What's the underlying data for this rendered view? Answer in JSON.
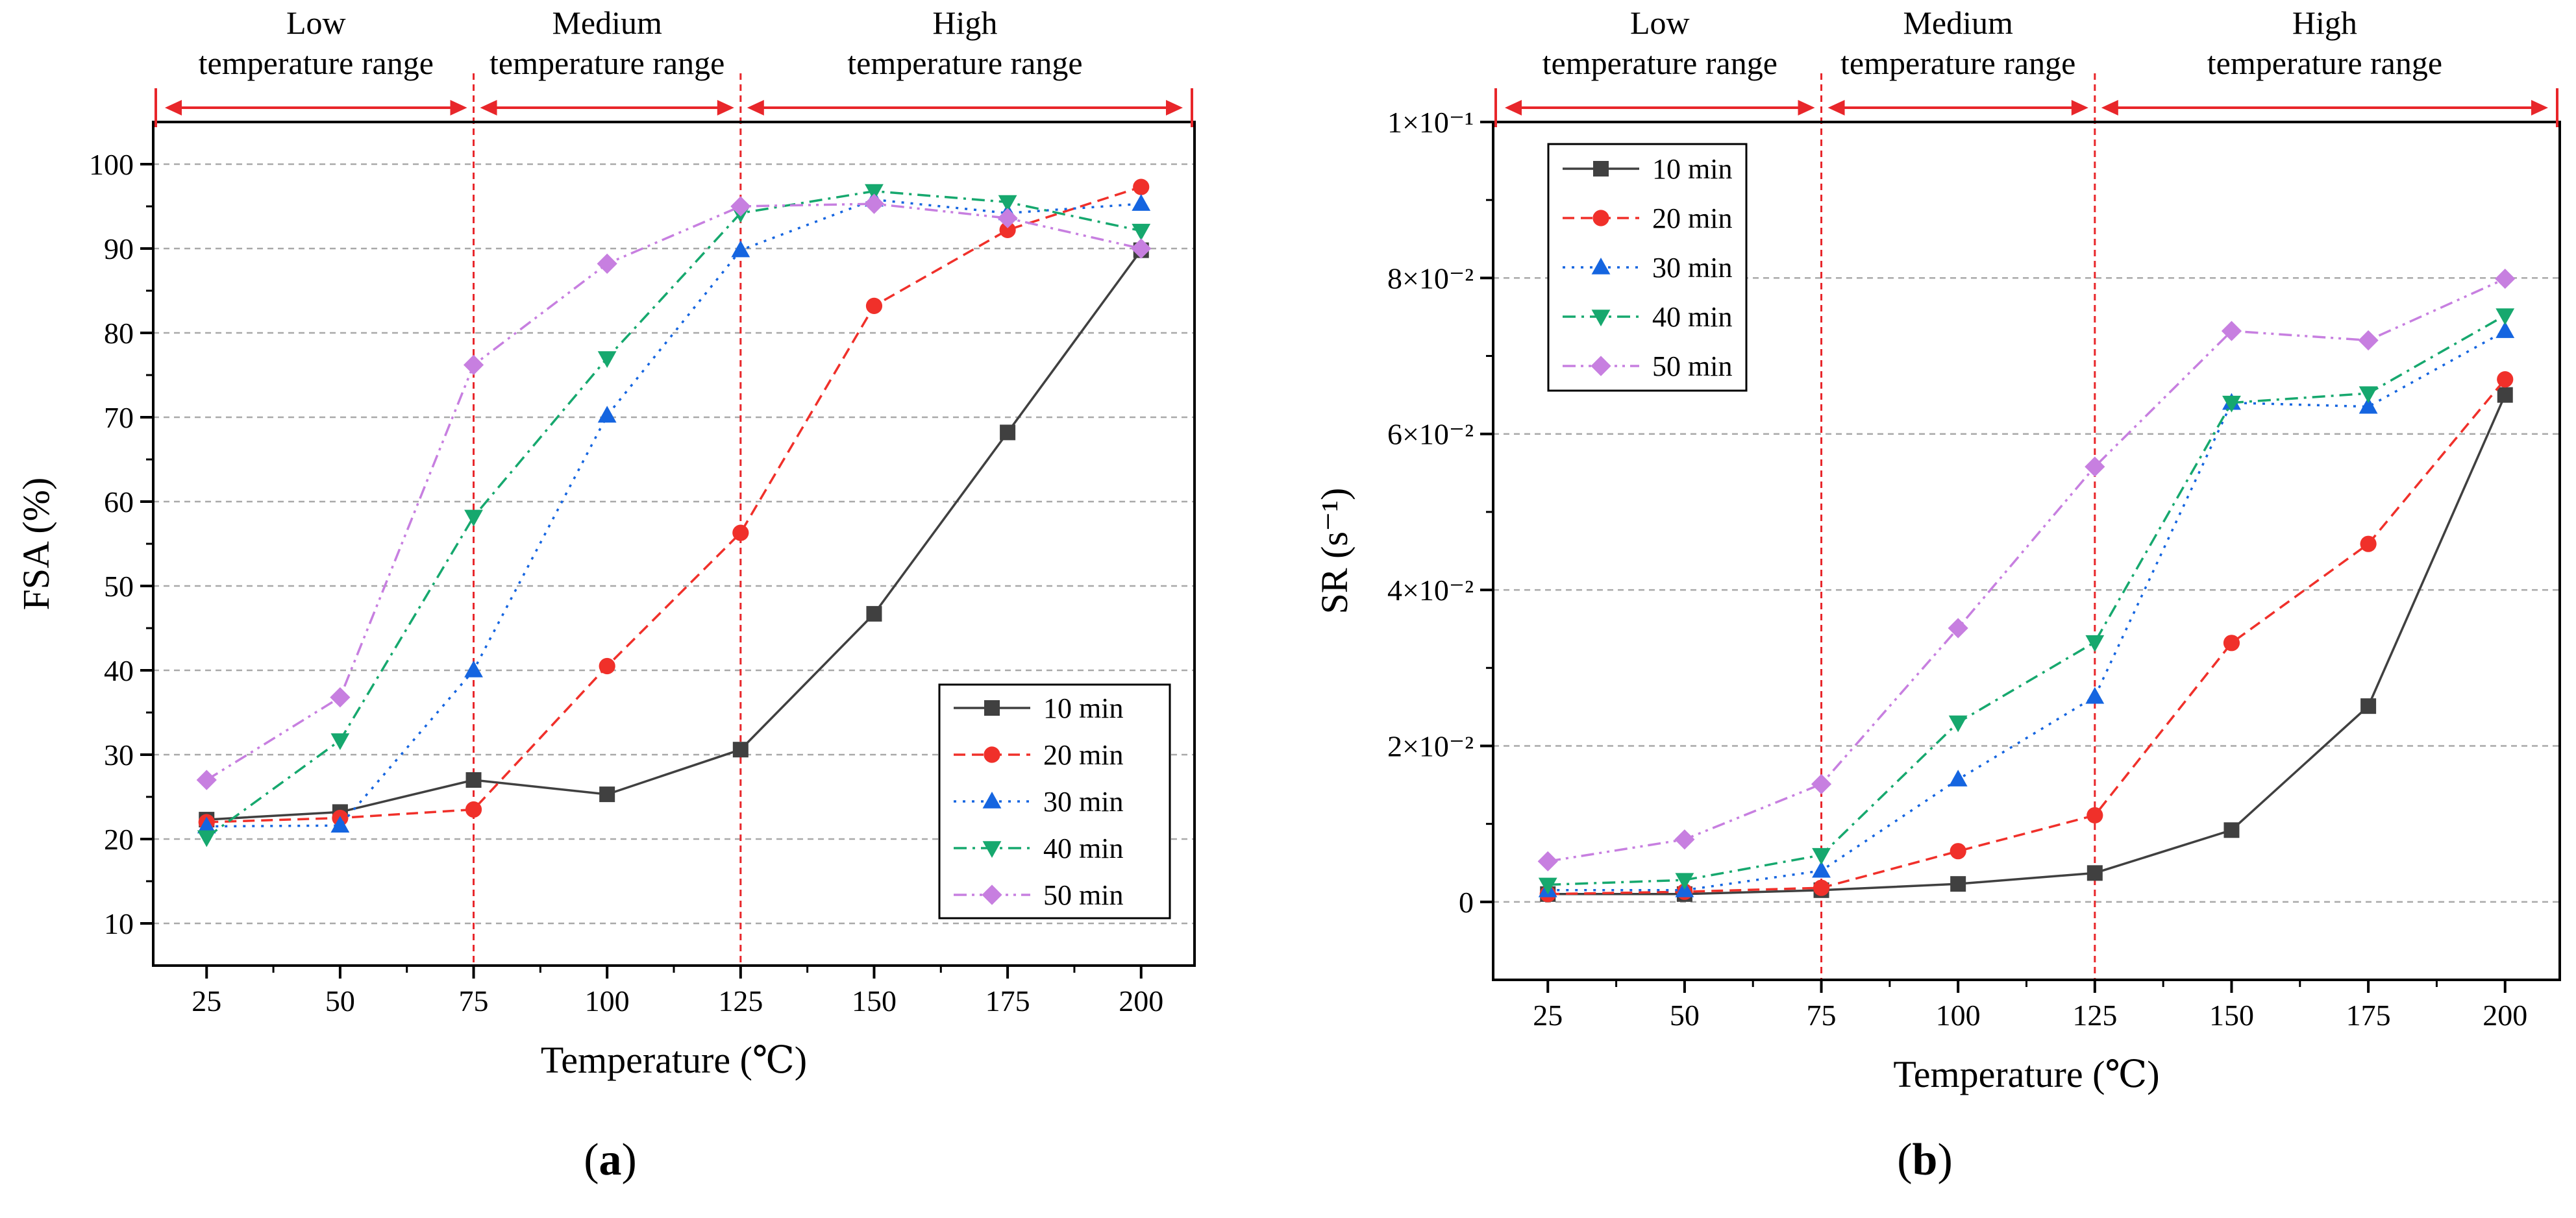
{
  "chart_data": [
    {
      "type": "line",
      "panel_label": {
        "open": "(",
        "letter": "a",
        "close": ")"
      },
      "xlabel": "Temperature (℃)",
      "ylabel": "FSA (%)",
      "x": [
        25,
        50,
        75,
        100,
        125,
        150,
        175,
        200
      ],
      "xlim": [
        15,
        210
      ],
      "ylim": [
        5,
        105
      ],
      "x_ticks": [
        "25",
        "50",
        "75",
        "100",
        "125",
        "150",
        "175",
        "200"
      ],
      "y_ticks": [
        "10",
        "20",
        "30",
        "40",
        "50",
        "60",
        "70",
        "80",
        "90",
        "100"
      ],
      "grid": "horizontal dashed",
      "legend": "bottom-right",
      "ranges": [
        {
          "line1": "Low",
          "line2": "temperature range"
        },
        {
          "line1": "Medium",
          "line2": "temperature range"
        },
        {
          "line1": "High",
          "line2": "temperature range"
        }
      ],
      "range_boundaries": [
        75,
        125
      ],
      "series": [
        {
          "name": "10 min",
          "color": "#404040",
          "marker": "square",
          "dash": "solid",
          "values": [
            22.3,
            23.2,
            27.0,
            25.3,
            30.6,
            46.7,
            68.2,
            89.8
          ]
        },
        {
          "name": "20 min",
          "color": "#f0302a",
          "marker": "circle",
          "dash": "dashed",
          "values": [
            22.0,
            22.5,
            23.5,
            40.5,
            56.3,
            83.2,
            92.2,
            97.3
          ]
        },
        {
          "name": "30 min",
          "color": "#1565e0",
          "marker": "triangle-up",
          "dash": "dotted",
          "values": [
            21.5,
            21.6,
            40.0,
            70.2,
            89.8,
            95.8,
            94.2,
            95.3
          ]
        },
        {
          "name": "40 min",
          "color": "#16a86e",
          "marker": "triangle-down",
          "dash": "dashdot",
          "values": [
            20.2,
            31.7,
            58.2,
            77.0,
            94.2,
            96.8,
            95.5,
            92.1
          ]
        },
        {
          "name": "50 min",
          "color": "#c77fe0",
          "marker": "diamond",
          "dash": "dashdotdot",
          "values": [
            27.0,
            36.8,
            76.2,
            88.2,
            95.0,
            95.3,
            93.6,
            90.0
          ]
        }
      ]
    },
    {
      "type": "line",
      "panel_label": {
        "open": "(",
        "letter": "b",
        "close": ")"
      },
      "xlabel": "Temperature (℃)",
      "ylabel": "SR (s⁻¹)",
      "x": [
        25,
        50,
        75,
        100,
        125,
        150,
        175,
        200
      ],
      "xlim": [
        15,
        210
      ],
      "ylim": [
        -0.01,
        0.1
      ],
      "x_ticks": [
        "25",
        "50",
        "75",
        "100",
        "125",
        "150",
        "175",
        "200"
      ],
      "y_ticks": [
        "0",
        "2×10⁻²",
        "4×10⁻²",
        "6×10⁻²",
        "8×10⁻²",
        "1×10⁻¹"
      ],
      "grid": "horizontal dashed",
      "legend": "top-left",
      "ranges": [
        {
          "line1": "Low",
          "line2": "temperature range"
        },
        {
          "line1": "Medium",
          "line2": "temperature range"
        },
        {
          "line1": "High",
          "line2": "temperature range"
        }
      ],
      "range_boundaries": [
        75,
        125
      ],
      "series": [
        {
          "name": "10 min",
          "color": "#404040",
          "marker": "square",
          "dash": "solid",
          "values": [
            0.001,
            0.001,
            0.0015,
            0.0023,
            0.0037,
            0.0092,
            0.0251,
            0.065
          ]
        },
        {
          "name": "20 min",
          "color": "#f0302a",
          "marker": "circle",
          "dash": "dashed",
          "values": [
            0.001,
            0.0013,
            0.0018,
            0.0065,
            0.0111,
            0.0332,
            0.0459,
            0.067
          ]
        },
        {
          "name": "30 min",
          "color": "#1565e0",
          "marker": "triangle-up",
          "dash": "dotted",
          "values": [
            0.0015,
            0.0015,
            0.004,
            0.0157,
            0.0263,
            0.064,
            0.0635,
            0.0732
          ]
        },
        {
          "name": "40 min",
          "color": "#16a86e",
          "marker": "triangle-down",
          "dash": "dashdot",
          "values": [
            0.0022,
            0.0028,
            0.006,
            0.023,
            0.0333,
            0.064,
            0.0652,
            0.0752
          ]
        },
        {
          "name": "50 min",
          "color": "#c77fe0",
          "marker": "diamond",
          "dash": "dashdotdot",
          "values": [
            0.0052,
            0.008,
            0.0151,
            0.0351,
            0.0558,
            0.0732,
            0.072,
            0.0799
          ]
        }
      ]
    }
  ]
}
